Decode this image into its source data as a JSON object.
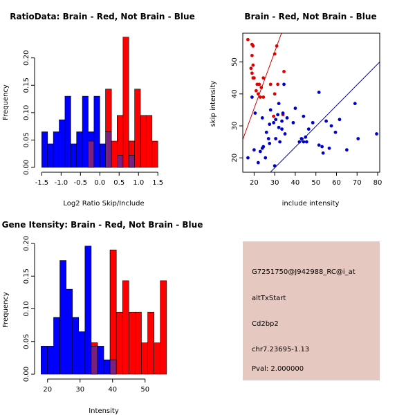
{
  "colors": {
    "red": "#ff0000",
    "blue": "#0000ff",
    "overlap": "#7a2080",
    "red_point": "#e00000",
    "blue_point": "#0000cc",
    "red_line": "#cc0000",
    "blue_line": "#00008b",
    "info_bg": "#e5c8c0",
    "pval": "#b00000"
  },
  "chart_data": [
    {
      "id": "ratio",
      "type": "bar",
      "title": "RatioData: Brain - Red, Not Brain - Blue",
      "xlabel": "Log2 Ratio Skip/Include",
      "ylabel": "Frequency",
      "xlim": [
        -1.56,
        1.8
      ],
      "ylim": [
        0,
        0.235
      ],
      "xticks": [
        -1.5,
        -1.0,
        -0.5,
        0.0,
        0.5,
        1.0,
        1.5
      ],
      "xtick_labels": [
        "-1.5",
        "-1.0",
        "-0.5",
        "0.0",
        "0.5",
        "1.0",
        "1.5"
      ],
      "yticks": [
        0,
        0.05,
        0.1,
        0.15,
        0.2
      ],
      "ytick_labels": [
        "0.00",
        "0.05",
        "0.10",
        "0.15",
        "0.20"
      ],
      "bin_start": -1.5,
      "bin_width": 0.15,
      "series": [
        {
          "name": "Not Brain",
          "color": "blue",
          "values": [
            0.065,
            0.043,
            0.065,
            0.087,
            0.13,
            0.043,
            0.065,
            0.13,
            0.065,
            0.13,
            0.043,
            0.065,
            0.0,
            0.022,
            0.0,
            0.022,
            0.0
          ]
        },
        {
          "name": "Brain",
          "color": "red",
          "values": [
            0.0,
            0.0,
            0.0,
            0.0,
            0.0,
            0.0,
            0.0,
            0.0,
            0.048,
            0.0,
            0.0,
            0.143,
            0.048,
            0.095,
            0.238,
            0.048,
            0.143,
            0.095,
            0.095,
            0.048
          ]
        }
      ]
    },
    {
      "id": "scatter",
      "type": "scatter",
      "title": "Brain - Red, Not Brain - Blue",
      "xlabel": "include intensity",
      "ylabel": "skip intensity",
      "xlim": [
        14.5,
        81
      ],
      "ylim": [
        15.5,
        59
      ],
      "xticks": [
        20,
        30,
        40,
        50,
        60,
        70,
        80
      ],
      "xtick_labels": [
        "20",
        "30",
        "40",
        "50",
        "60",
        "70",
        "80"
      ],
      "yticks": [
        20,
        30,
        40,
        50
      ],
      "ytick_labels": [
        "20",
        "30",
        "40",
        "50"
      ],
      "series": [
        {
          "name": "Brain",
          "color": "red_point",
          "points": [
            [
              17,
              57
            ],
            [
              19,
              55.5
            ],
            [
              19.5,
              55
            ],
            [
              19,
              52
            ],
            [
              19.5,
              49
            ],
            [
              18.5,
              48
            ],
            [
              19,
              46.5
            ],
            [
              19.5,
              45
            ],
            [
              20,
              45
            ],
            [
              21.5,
              43
            ],
            [
              21,
              41
            ],
            [
              22,
              40
            ],
            [
              23,
              39
            ],
            [
              24.5,
              39
            ],
            [
              23.5,
              42
            ],
            [
              22.5,
              43
            ],
            [
              24.5,
              45
            ],
            [
              30,
              52.5
            ],
            [
              31,
              55
            ],
            [
              34.5,
              47
            ],
            [
              30,
              40
            ],
            [
              29.5,
              33
            ],
            [
              31.5,
              43
            ],
            [
              34,
              33.5
            ],
            [
              28,
              43
            ]
          ]
        },
        {
          "name": "Not Brain",
          "color": "blue_point",
          "points": [
            [
              19,
              39
            ],
            [
              20.5,
              34
            ],
            [
              17,
              20
            ],
            [
              22,
              18.5
            ],
            [
              23,
              22
            ],
            [
              24,
              23
            ],
            [
              24.5,
              23.5
            ],
            [
              25.5,
              20
            ],
            [
              20,
              22.5
            ],
            [
              24,
              32.5
            ],
            [
              26,
              28
            ],
            [
              27.5,
              30.5
            ],
            [
              28,
              35
            ],
            [
              29.5,
              31
            ],
            [
              30.5,
              32
            ],
            [
              31.5,
              33.5
            ],
            [
              33.5,
              31.5
            ],
            [
              34,
              34
            ],
            [
              32,
              37
            ],
            [
              34.5,
              43
            ],
            [
              32.5,
              25
            ],
            [
              30.5,
              26
            ],
            [
              27,
              26
            ],
            [
              27.5,
              24.5
            ],
            [
              30,
              17.5
            ],
            [
              32,
              29.5
            ],
            [
              33.5,
              29
            ],
            [
              36,
              32.5
            ],
            [
              35,
              27.5
            ],
            [
              39,
              31
            ],
            [
              42,
              25
            ],
            [
              43,
              26
            ],
            [
              44,
              25
            ],
            [
              45,
              26.5
            ],
            [
              45.5,
              25
            ],
            [
              46.5,
              29
            ],
            [
              48.5,
              31
            ],
            [
              51.5,
              40.5
            ],
            [
              51.5,
              24
            ],
            [
              53,
              23.5
            ],
            [
              53.5,
              21.5
            ],
            [
              55,
              31.5
            ],
            [
              56.5,
              23
            ],
            [
              57.5,
              30
            ],
            [
              59.5,
              28
            ],
            [
              61.5,
              32
            ],
            [
              65,
              22.5
            ],
            [
              69,
              37
            ],
            [
              70.5,
              26
            ],
            [
              79.5,
              27.5
            ],
            [
              44,
              33
            ],
            [
              40,
              35.5
            ]
          ]
        }
      ],
      "lines": [
        {
          "name": "Brain fit",
          "color": "red_line",
          "from": [
            14.5,
            25.7
          ],
          "to": [
            33.3,
            59
          ]
        },
        {
          "name": "Not Brain fit",
          "color": "blue_line",
          "from": [
            14.5,
            6.8
          ],
          "to": [
            81,
            50
          ]
        }
      ]
    },
    {
      "id": "intensity",
      "type": "bar",
      "title": "Gene Itensity: Brain - Red, Not Brain - Blue",
      "xlabel": "Intensity",
      "ylabel": "Frequency",
      "xlim": [
        17.5,
        57.5
      ],
      "ylim": [
        0,
        0.2
      ],
      "xticks": [
        20,
        30,
        40,
        50
      ],
      "xtick_labels": [
        "20",
        "30",
        "40",
        "50"
      ],
      "yticks": [
        0,
        0.05,
        0.1,
        0.15,
        0.2
      ],
      "ytick_labels": [
        "0.00",
        "0.05",
        "0.10",
        "0.15",
        "0.20"
      ],
      "bin_start": 18,
      "bin_width": 1.93,
      "series": [
        {
          "name": "Not Brain",
          "color": "blue",
          "values": [
            0.043,
            0.043,
            0.087,
            0.174,
            0.13,
            0.087,
            0.065,
            0.196,
            0.043,
            0.043,
            0.022,
            0.022
          ]
        },
        {
          "name": "Brain",
          "color": "red",
          "values": [
            0.0,
            0.0,
            0.0,
            0.0,
            0.0,
            0.0,
            0.0,
            0.0,
            0.048,
            0.0,
            0.0,
            0.19,
            0.095,
            0.143,
            0.095,
            0.095,
            0.048,
            0.095,
            0.048,
            0.143
          ]
        }
      ]
    }
  ],
  "info_panel": {
    "probe_id": "G7251750@J942988_RC@i_at",
    "event_type": "altTxStart",
    "gene": "Cd2bp2",
    "location": "chr7.23695-1.13",
    "pval": "Pval: 2.000000"
  }
}
